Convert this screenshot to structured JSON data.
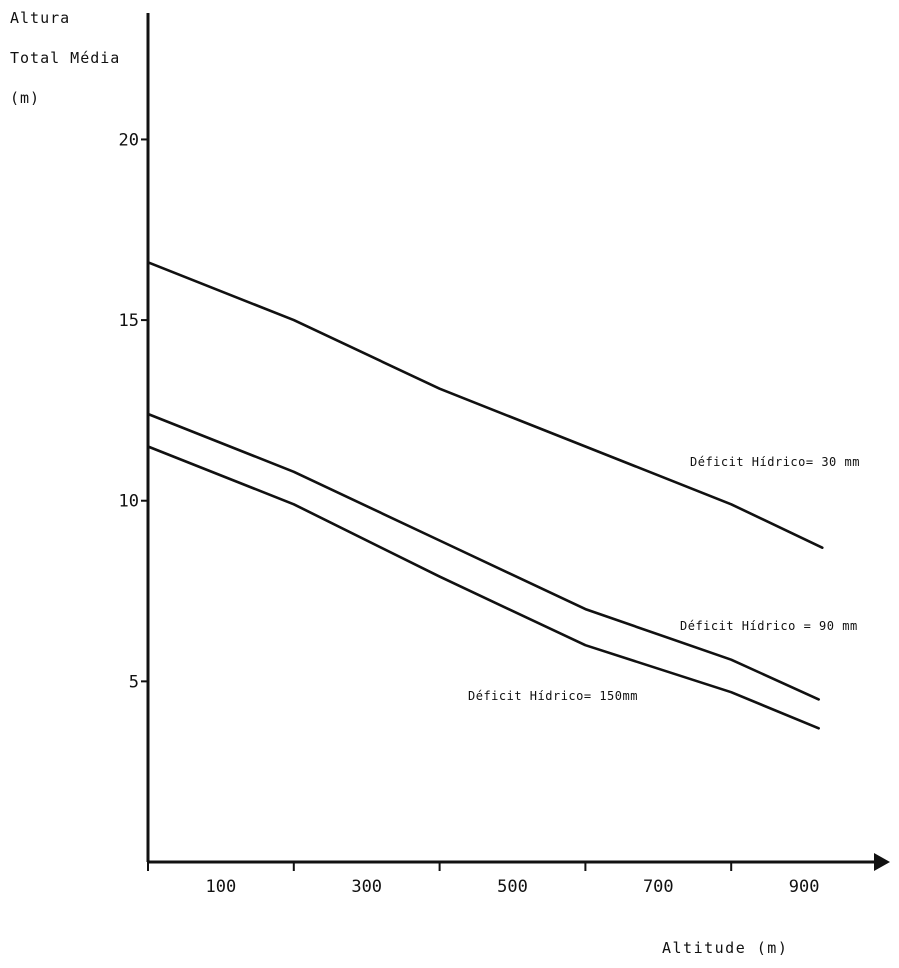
{
  "chart_data": {
    "type": "line",
    "xlabel": "Altitude (m)",
    "ylabel_lines": [
      "Altura",
      "Total Média",
      "(m)"
    ],
    "xlim": [
      0,
      1000
    ],
    "ylim": [
      0,
      23.5
    ],
    "x_ticks": [
      0,
      200,
      400,
      600,
      800
    ],
    "x_tick_labels": [
      {
        "x": 100,
        "label": "100"
      },
      {
        "x": 300,
        "label": "300"
      },
      {
        "x": 500,
        "label": "500"
      },
      {
        "x": 700,
        "label": "700"
      },
      {
        "x": 900,
        "label": "900"
      }
    ],
    "y_ticks": [
      {
        "y": 5,
        "label": "5"
      },
      {
        "y": 10,
        "label": "10"
      },
      {
        "y": 15,
        "label": "15"
      },
      {
        "y": 20,
        "label": "20"
      }
    ],
    "grid": false,
    "series": [
      {
        "name": "Déficit Hídrico= 30 mm",
        "x": [
          0,
          200,
          400,
          600,
          800,
          925
        ],
        "y": [
          16.6,
          15.0,
          13.1,
          11.5,
          9.9,
          8.7
        ]
      },
      {
        "name": "Déficit Hídrico = 90 mm",
        "x": [
          0,
          200,
          400,
          600,
          800,
          920
        ],
        "y": [
          12.4,
          10.8,
          8.9,
          7.0,
          5.6,
          4.5
        ]
      },
      {
        "name": "Déficit Hídrico= 150mm",
        "x": [
          0,
          200,
          400,
          600,
          800,
          920
        ],
        "y": [
          11.5,
          9.9,
          7.9,
          6.0,
          4.7,
          3.7
        ]
      }
    ]
  }
}
